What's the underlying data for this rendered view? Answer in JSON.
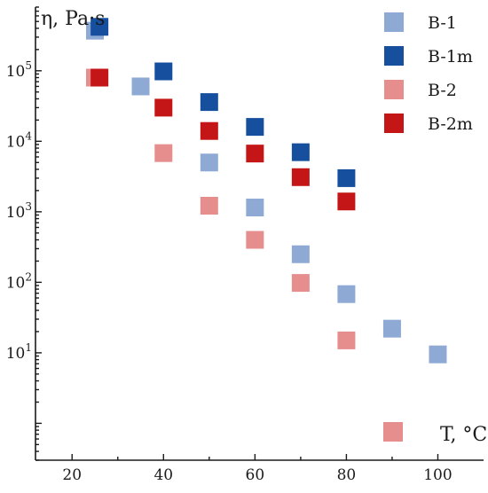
{
  "chart_data": {
    "type": "scatter",
    "title": "",
    "ylabel": "η, Pa·s",
    "xlabel": "T, °C",
    "x_scale": "linear",
    "y_scale": "log",
    "xlim": [
      12,
      110
    ],
    "ylim": [
      0.3,
      800000
    ],
    "xticks": [
      20,
      40,
      60,
      80,
      100
    ],
    "xtick_labels": [
      "20",
      "40",
      "60",
      "80",
      "100"
    ],
    "yticks": [
      10,
      100,
      1000,
      10000,
      100000
    ],
    "ytick_labels": [
      {
        "base": "10",
        "exp": "1"
      },
      {
        "base": "10",
        "exp": "2"
      },
      {
        "base": "10",
        "exp": "3"
      },
      {
        "base": "10",
        "exp": "4"
      },
      {
        "base": "10",
        "exp": "5"
      }
    ],
    "grid": false,
    "legend_position": "top-right",
    "series": [
      {
        "name": "B-1",
        "color": "#8eaad4",
        "points": [
          {
            "x": 25,
            "y": 370000
          },
          {
            "x": 35,
            "y": 60000
          },
          {
            "x": 50,
            "y": 5000
          },
          {
            "x": 60,
            "y": 1150
          },
          {
            "x": 70,
            "y": 250
          },
          {
            "x": 80,
            "y": 68
          },
          {
            "x": 90,
            "y": 22
          },
          {
            "x": 100,
            "y": 9.5
          }
        ]
      },
      {
        "name": "B-1m",
        "color": "#164f9e",
        "points": [
          {
            "x": 26,
            "y": 420000
          },
          {
            "x": 40,
            "y": 98000
          },
          {
            "x": 50,
            "y": 36000
          },
          {
            "x": 60,
            "y": 16000
          },
          {
            "x": 70,
            "y": 7000
          },
          {
            "x": 80,
            "y": 3000
          }
        ]
      },
      {
        "name": "B-2",
        "color": "#e68d8d",
        "points": [
          {
            "x": 25,
            "y": 80000
          },
          {
            "x": 40,
            "y": 6800
          },
          {
            "x": 50,
            "y": 1220
          },
          {
            "x": 60,
            "y": 400
          },
          {
            "x": 70,
            "y": 98
          },
          {
            "x": 80,
            "y": 15
          }
        ]
      },
      {
        "name": "B-2m",
        "color": "#c41616",
        "points": [
          {
            "x": 26,
            "y": 80000
          },
          {
            "x": 40,
            "y": 30000
          },
          {
            "x": 50,
            "y": 14000
          },
          {
            "x": 60,
            "y": 6700
          },
          {
            "x": 70,
            "y": 3100
          },
          {
            "x": 80,
            "y": 1400
          }
        ]
      }
    ],
    "annotations": [
      {
        "text": "T, °C",
        "marker_color": "#e68d8d"
      }
    ]
  }
}
